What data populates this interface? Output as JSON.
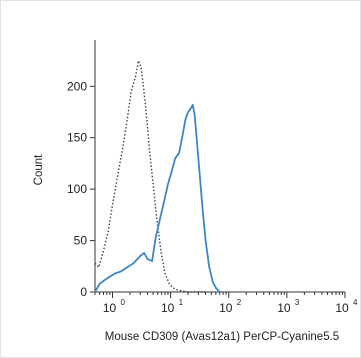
{
  "chart_data": {
    "type": "line",
    "title": "",
    "xlabel": "Mouse CD309 (Avas12a1) PerCP-Cyanine5.5",
    "ylabel": "Count",
    "x_scale": "log",
    "xlim": [
      0.5,
      10000
    ],
    "ylim": [
      0,
      245
    ],
    "grid": false,
    "legend": "none",
    "y_ticks": [
      0,
      50,
      100,
      150,
      200
    ],
    "x_ticks": [
      {
        "value": 1,
        "base": "10",
        "exp": "0"
      },
      {
        "value": 10,
        "base": "10",
        "exp": "1"
      },
      {
        "value": 100,
        "base": "10",
        "exp": "2"
      },
      {
        "value": 1000,
        "base": "10",
        "exp": "3"
      },
      {
        "value": 10000,
        "base": "10",
        "exp": "4"
      }
    ],
    "series": [
      {
        "style": "dotted",
        "color": "#444444",
        "x": [
          0.5,
          0.58,
          0.7,
          0.85,
          1.0,
          1.2,
          1.5,
          1.8,
          2.1,
          2.5,
          2.8,
          3.1,
          3.4,
          3.8,
          4.3,
          5.0,
          5.8,
          6.8,
          8.0,
          9.5,
          11,
          13,
          16,
          20,
          25,
          32,
          40
        ],
        "y": [
          28,
          24,
          40,
          60,
          85,
          110,
          140,
          168,
          195,
          210,
          225,
          218,
          200,
          175,
          140,
          105,
          70,
          40,
          18,
          8,
          4,
          2,
          1,
          0,
          0,
          0,
          0
        ]
      },
      {
        "style": "solid",
        "color": "#3a88c8",
        "x": [
          0.5,
          0.6,
          0.75,
          0.9,
          1.1,
          1.4,
          1.8,
          2.3,
          3.0,
          3.5,
          4.0,
          4.8,
          5.5,
          6.5,
          7.5,
          9.0,
          10.5,
          12,
          14,
          16,
          18,
          20,
          22,
          24,
          26,
          28,
          31,
          35,
          40,
          46,
          53,
          60,
          70
        ],
        "y": [
          0,
          8,
          12,
          15,
          18,
          20,
          24,
          28,
          35,
          38,
          32,
          30,
          52,
          70,
          85,
          105,
          118,
          130,
          135,
          152,
          168,
          175,
          178,
          182,
          172,
          150,
          120,
          85,
          50,
          25,
          10,
          4,
          0
        ]
      }
    ]
  }
}
